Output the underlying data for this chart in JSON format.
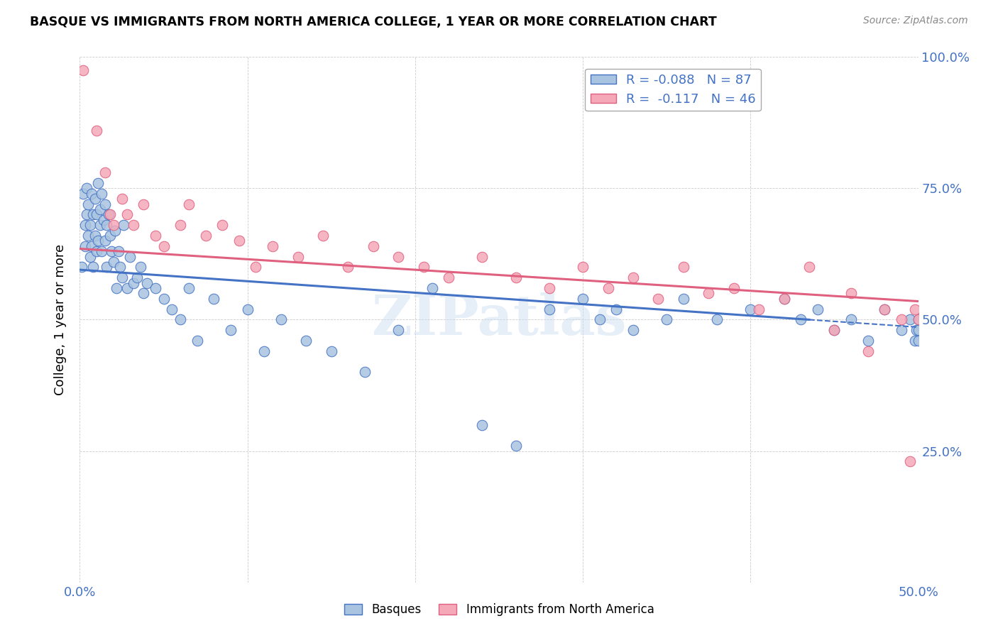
{
  "title": "BASQUE VS IMMIGRANTS FROM NORTH AMERICA COLLEGE, 1 YEAR OR MORE CORRELATION CHART",
  "source": "Source: ZipAtlas.com",
  "ylabel": "College, 1 year or more",
  "xlabel_label_basques": "Basques",
  "xlabel_label_immigrants": "Immigrants from North America",
  "x_min": 0.0,
  "x_max": 0.5,
  "y_min": 0.0,
  "y_max": 1.0,
  "basque_R": -0.088,
  "basque_N": 87,
  "immigrant_R": -0.117,
  "immigrant_N": 46,
  "basque_color": "#a8c4e0",
  "immigrant_color": "#f4a8b8",
  "basque_line_color": "#4472c4",
  "immigrant_line_color": "#e06080",
  "watermark": "ZIPatlas",
  "basque_line_x0": 0.0,
  "basque_line_y0": 0.595,
  "basque_line_x1": 0.435,
  "basque_line_y1": 0.5,
  "immigrant_line_x0": 0.0,
  "immigrant_line_y0": 0.635,
  "immigrant_line_x1": 0.5,
  "immigrant_line_y1": 0.535,
  "basque_x": [
    0.001,
    0.002,
    0.003,
    0.003,
    0.004,
    0.004,
    0.005,
    0.005,
    0.006,
    0.006,
    0.007,
    0.007,
    0.008,
    0.008,
    0.009,
    0.009,
    0.01,
    0.01,
    0.011,
    0.011,
    0.012,
    0.012,
    0.013,
    0.013,
    0.014,
    0.015,
    0.015,
    0.016,
    0.016,
    0.017,
    0.018,
    0.019,
    0.02,
    0.021,
    0.022,
    0.023,
    0.024,
    0.025,
    0.026,
    0.028,
    0.03,
    0.032,
    0.034,
    0.036,
    0.038,
    0.04,
    0.045,
    0.05,
    0.055,
    0.06,
    0.065,
    0.07,
    0.08,
    0.09,
    0.1,
    0.11,
    0.12,
    0.135,
    0.15,
    0.17,
    0.19,
    0.21,
    0.24,
    0.26,
    0.28,
    0.3,
    0.31,
    0.32,
    0.33,
    0.35,
    0.36,
    0.38,
    0.4,
    0.42,
    0.43,
    0.44,
    0.45,
    0.46,
    0.47,
    0.48,
    0.49,
    0.495,
    0.498,
    0.499,
    0.5,
    0.5,
    0.5
  ],
  "basque_y": [
    0.6,
    0.74,
    0.64,
    0.68,
    0.7,
    0.75,
    0.66,
    0.72,
    0.62,
    0.68,
    0.74,
    0.64,
    0.7,
    0.6,
    0.66,
    0.73,
    0.63,
    0.7,
    0.76,
    0.65,
    0.71,
    0.68,
    0.63,
    0.74,
    0.69,
    0.65,
    0.72,
    0.68,
    0.6,
    0.7,
    0.66,
    0.63,
    0.61,
    0.67,
    0.56,
    0.63,
    0.6,
    0.58,
    0.68,
    0.56,
    0.62,
    0.57,
    0.58,
    0.6,
    0.55,
    0.57,
    0.56,
    0.54,
    0.52,
    0.5,
    0.56,
    0.46,
    0.54,
    0.48,
    0.52,
    0.44,
    0.5,
    0.46,
    0.44,
    0.4,
    0.48,
    0.56,
    0.3,
    0.26,
    0.52,
    0.54,
    0.5,
    0.52,
    0.48,
    0.5,
    0.54,
    0.5,
    0.52,
    0.54,
    0.5,
    0.52,
    0.48,
    0.5,
    0.46,
    0.52,
    0.48,
    0.5,
    0.46,
    0.48,
    0.5,
    0.46,
    0.48
  ],
  "immigrant_x": [
    0.002,
    0.01,
    0.015,
    0.018,
    0.02,
    0.025,
    0.028,
    0.032,
    0.038,
    0.045,
    0.05,
    0.06,
    0.065,
    0.075,
    0.085,
    0.095,
    0.105,
    0.115,
    0.13,
    0.145,
    0.16,
    0.175,
    0.19,
    0.205,
    0.22,
    0.24,
    0.26,
    0.28,
    0.3,
    0.315,
    0.33,
    0.345,
    0.36,
    0.375,
    0.39,
    0.405,
    0.42,
    0.435,
    0.45,
    0.46,
    0.47,
    0.48,
    0.49,
    0.495,
    0.498,
    0.5
  ],
  "immigrant_y": [
    0.975,
    0.86,
    0.78,
    0.7,
    0.68,
    0.73,
    0.7,
    0.68,
    0.72,
    0.66,
    0.64,
    0.68,
    0.72,
    0.66,
    0.68,
    0.65,
    0.6,
    0.64,
    0.62,
    0.66,
    0.6,
    0.64,
    0.62,
    0.6,
    0.58,
    0.62,
    0.58,
    0.56,
    0.6,
    0.56,
    0.58,
    0.54,
    0.6,
    0.55,
    0.56,
    0.52,
    0.54,
    0.6,
    0.48,
    0.55,
    0.44,
    0.52,
    0.5,
    0.23,
    0.52,
    0.5
  ]
}
